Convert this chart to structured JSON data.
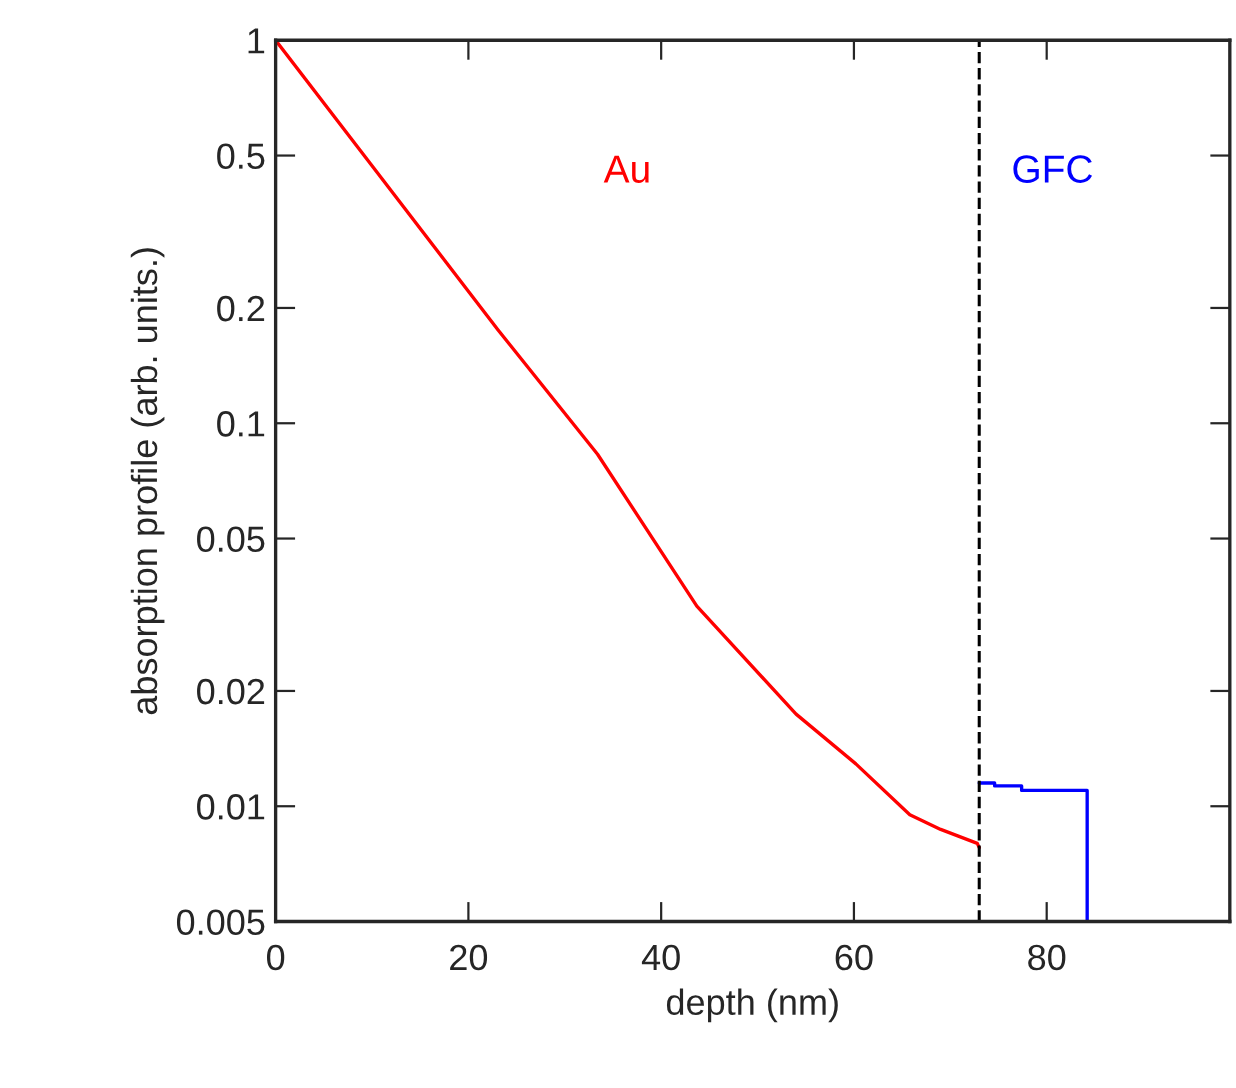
{
  "chart_data": {
    "type": "line",
    "xlabel": "depth (nm)",
    "ylabel": "absorption profile (arb. units.)",
    "log": "y",
    "xlim": [
      0,
      99
    ],
    "xticks": [
      0,
      20,
      40,
      60,
      80
    ],
    "ylim": [
      0.005,
      1
    ],
    "yticks": [
      0.005,
      0.01,
      0.02,
      0.05,
      0.1,
      0.2,
      0.5,
      1
    ],
    "grid": false,
    "legend": false,
    "line_style": "solid",
    "marker": "none",
    "series": [
      {
        "name": "Au",
        "color": "#ff0000",
        "x": [
          0,
          10,
          23.1,
          33.4,
          43.7,
          54,
          60.2,
          65.8,
          69,
          72.8,
          73
        ],
        "values": [
          1,
          0.47,
          0.175,
          0.083,
          0.0333,
          0.0174,
          0.0129,
          0.0095,
          0.0087,
          0.008,
          0.0078
        ]
      },
      {
        "name": "GFC",
        "color": "#0000ff",
        "x": [
          73,
          74.6,
          74.6,
          77.4,
          77.4,
          84.2,
          84.2
        ],
        "values": [
          0.0115,
          0.0115,
          0.0113,
          0.0113,
          0.011,
          0.011,
          0.005
        ]
      }
    ],
    "ref_lines": [
      {
        "axis": "x",
        "value": 73,
        "color": "#000000",
        "line_style": "dashed"
      }
    ]
  }
}
